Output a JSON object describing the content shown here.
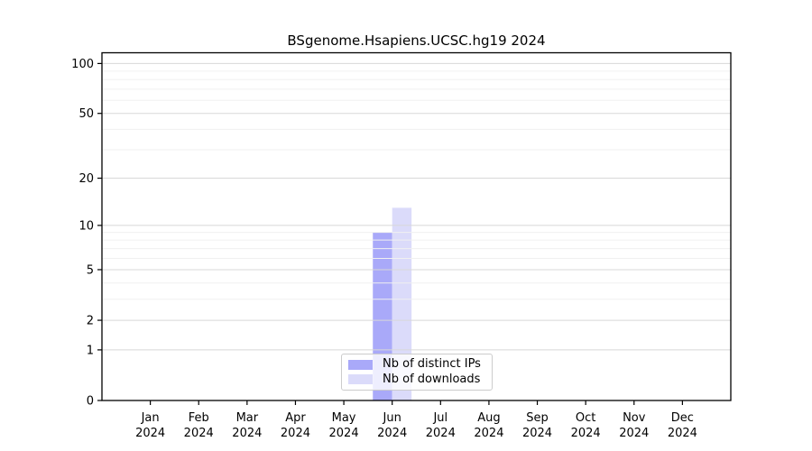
{
  "chart_data": {
    "type": "bar",
    "title": "BSgenome.Hsapiens.UCSC.hg19 2024",
    "xlabel": "",
    "ylabel": "",
    "categories": [
      "Jan",
      "Feb",
      "Mar",
      "Apr",
      "May",
      "Jun",
      "Jul",
      "Aug",
      "Sep",
      "Oct",
      "Nov",
      "Dec"
    ],
    "year_label": "2024",
    "series": [
      {
        "name": "Nb of distinct IPs",
        "color": "#a9a9f9",
        "values": [
          0,
          0,
          0,
          0,
          0,
          9,
          0,
          0,
          0,
          0,
          0,
          0
        ]
      },
      {
        "name": "Nb of downloads",
        "color": "#dbdbfa",
        "values": [
          0,
          0,
          0,
          0,
          0,
          13,
          0,
          0,
          0,
          0,
          0,
          0
        ]
      }
    ],
    "yscale": "log1p",
    "ylim": [
      0,
      116
    ],
    "yticks": [
      0,
      1,
      2,
      5,
      10,
      20,
      50,
      100
    ],
    "minor_gridlines": [
      3,
      4,
      6,
      7,
      8,
      9,
      30,
      40,
      60,
      70,
      80,
      90
    ],
    "grid_major_color": "#d8d8d8",
    "grid_minor_color": "#f0f0f0",
    "axis_color": "#000000",
    "legend_position": "bottom-center",
    "legend_entries": [
      "Nb of distinct IPs",
      "Nb of downloads"
    ]
  }
}
